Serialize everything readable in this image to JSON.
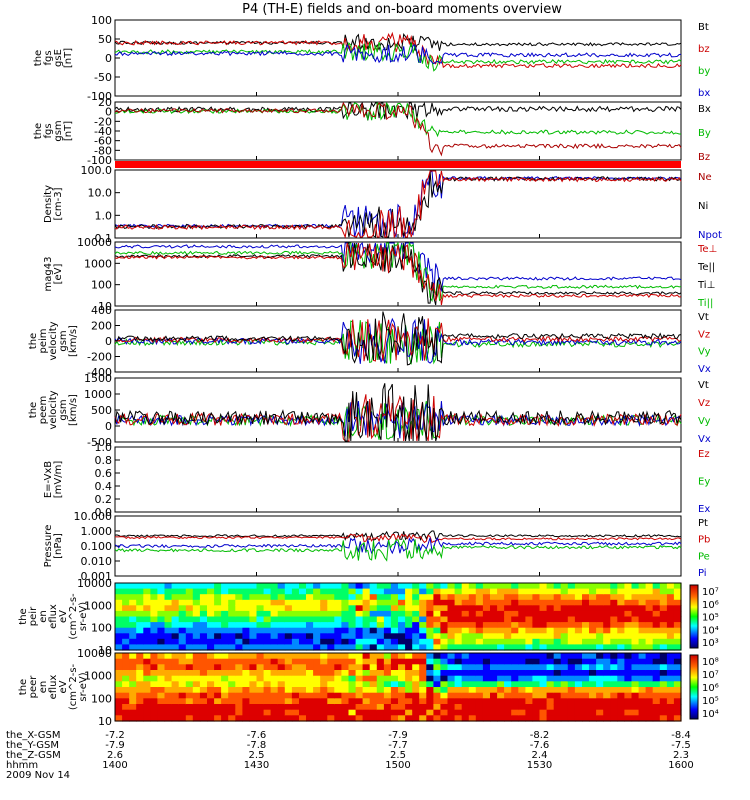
{
  "title": "P4 (TH-E) fields and on-board moments overview",
  "panels": [
    {
      "id": "fgs-gse",
      "ylabel": [
        "the",
        "fgs",
        "gsE",
        "[nT]"
      ],
      "yticks": [
        "100",
        "50",
        "0",
        "-50",
        "-100"
      ],
      "legend": [
        {
          "label": "Bt",
          "color": "#000000"
        },
        {
          "label": "bz",
          "color": "#cc0000"
        },
        {
          "label": "by",
          "color": "#00bb00"
        },
        {
          "label": "bx",
          "color": "#0000cc"
        }
      ]
    },
    {
      "id": "fgs-gsm",
      "ylabel": [
        "the",
        "fgs",
        "gsm",
        "[nT]"
      ],
      "yticks": [
        "20",
        "0",
        "-20",
        "-40",
        "-60",
        "-80",
        "-100"
      ],
      "legend": [
        {
          "label": "Bx",
          "color": "#000000"
        },
        {
          "label": "By",
          "color": "#00bb00"
        },
        {
          "label": "Bz",
          "color": "#aa0000"
        }
      ]
    },
    {
      "id": "density",
      "ylabel": [
        "Density",
        "[cm-3]"
      ],
      "yticks": [
        "100.0",
        "10.0",
        "1.0",
        "0.1"
      ],
      "legend": [
        {
          "label": "Ne",
          "color": "#aa0000"
        },
        {
          "label": "Ni",
          "color": "#000000"
        },
        {
          "label": "Npot",
          "color": "#0000cc"
        }
      ]
    },
    {
      "id": "temperature",
      "ylabel": [
        "mag43",
        "[eV]"
      ],
      "yticks": [
        "10000",
        "1000",
        "100",
        "10"
      ],
      "legend": [
        {
          "label": "Te⊥",
          "color": "#cc0000"
        },
        {
          "label": "Te||",
          "color": "#000000"
        },
        {
          "label": "Ti⊥",
          "color": "#000000"
        },
        {
          "label": "Ti||",
          "color": "#00bb00"
        }
      ]
    },
    {
      "id": "peim-velocity",
      "ylabel": [
        "the",
        "peim",
        "velocity",
        "gsm",
        "[km/s]"
      ],
      "yticks": [
        "400",
        "200",
        "0",
        "-200",
        "-400"
      ],
      "legend": [
        {
          "label": "Vt",
          "color": "#000000"
        },
        {
          "label": "Vz",
          "color": "#cc0000"
        },
        {
          "label": "Vy",
          "color": "#00bb00"
        },
        {
          "label": "Vx",
          "color": "#0000cc"
        }
      ]
    },
    {
      "id": "peem-velocity",
      "ylabel": [
        "the",
        "peem",
        "velocity",
        "gsm",
        "[km/s]"
      ],
      "yticks": [
        "1500",
        "1000",
        "500",
        "0",
        "-500"
      ],
      "legend": [
        {
          "label": "Vt",
          "color": "#000000"
        },
        {
          "label": "Vz",
          "color": "#cc0000"
        },
        {
          "label": "Vy",
          "color": "#00bb00"
        },
        {
          "label": "Vx",
          "color": "#0000cc"
        }
      ]
    },
    {
      "id": "efield",
      "ylabel": [
        "E=-VxB",
        "[mV/m]"
      ],
      "yticks": [
        "1.0",
        "0.8",
        "0.6",
        "0.4",
        "0.2",
        "0.0"
      ],
      "legend": [
        {
          "label": "Ez",
          "color": "#cc0000"
        },
        {
          "label": "Ey",
          "color": "#00bb00"
        },
        {
          "label": "Ex",
          "color": "#0000cc"
        }
      ]
    },
    {
      "id": "pressure",
      "ylabel": [
        "Pressure",
        "[nPa]"
      ],
      "yticks": [
        "10.000",
        "1.000",
        "0.100",
        "0.010",
        "0.001"
      ],
      "legend": [
        {
          "label": "Pt",
          "color": "#000000"
        },
        {
          "label": "Pb",
          "color": "#cc0000"
        },
        {
          "label": "Pe",
          "color": "#00bb00"
        },
        {
          "label": "Pi",
          "color": "#0000cc"
        }
      ]
    },
    {
      "id": "peir-eflux",
      "ylabel": [
        "the",
        "peir",
        "en",
        "eflux",
        "eV",
        "(cm^2-s-",
        "sr-eV)"
      ],
      "yticks": [
        "10000",
        "1000",
        "100",
        "10"
      ],
      "colorbar": [
        "10⁷",
        "10⁶",
        "10⁵",
        "10⁴",
        "10³"
      ]
    },
    {
      "id": "peer-eflux",
      "ylabel": [
        "the",
        "peer",
        "en",
        "eflux",
        "eV",
        "(cm^2-s-",
        "sr-eV)"
      ],
      "yticks": [
        "10000",
        "1000",
        "100",
        "10"
      ],
      "colorbar": [
        "10⁸",
        "10⁷",
        "10⁶",
        "10⁵",
        "10⁴"
      ]
    }
  ],
  "xaxis": {
    "row_labels": [
      "the_X-GSM",
      "the_Y-GSM",
      "the_Z-GSM",
      "hhmm",
      "2009 Nov 14"
    ],
    "ticks": [
      {
        "x": "-7.2",
        "y": "-7.9",
        "z": "2.6",
        "hhmm": "1400"
      },
      {
        "x": "-7.6",
        "y": "-7.8",
        "z": "2.5",
        "hhmm": "1430"
      },
      {
        "x": "-7.9",
        "y": "-7.7",
        "z": "2.5",
        "hhmm": "1500"
      },
      {
        "x": "-8.2",
        "y": "-7.6",
        "z": "2.4",
        "hhmm": "1530"
      },
      {
        "x": "-8.4",
        "y": "-7.5",
        "z": "2.3",
        "hhmm": "1600"
      }
    ]
  },
  "chart_data": {
    "type": "line",
    "title": "P4 (TH-E) fields and on-board moments overview",
    "x_range": [
      "1400",
      "1600"
    ],
    "x_ticks": [
      "1400",
      "1430",
      "1500",
      "1530",
      "1600"
    ],
    "boundary_crossing_hhmm": "1508",
    "series": [
      {
        "panel": "fgs-gse",
        "name": "Bt",
        "values_before": 40,
        "values_after": 38
      },
      {
        "panel": "fgs-gse",
        "name": "bz",
        "values_before": 40,
        "values_after": -20
      },
      {
        "panel": "fgs-gse",
        "name": "by",
        "values_before": 0,
        "values_after": -12
      },
      {
        "panel": "fgs-gse",
        "name": "bx",
        "values_before": -5,
        "values_after": 0
      },
      {
        "panel": "fgs-gsm",
        "name": "Bx",
        "values_before": 10,
        "values_after": 5
      },
      {
        "panel": "fgs-gsm",
        "name": "By",
        "values_before": 5,
        "values_after": -40
      },
      {
        "panel": "fgs-gsm",
        "name": "Bz",
        "values_before": 10,
        "values_after": -75
      },
      {
        "panel": "density",
        "name": "Ne",
        "values_before": 0.3,
        "values_after": 25
      },
      {
        "panel": "density",
        "name": "Ni",
        "values_before": 0.3,
        "values_after": 25
      },
      {
        "panel": "density",
        "name": "Npot",
        "values_before": 0.3,
        "values_after": 28
      },
      {
        "panel": "temperature",
        "name": "Te⊥",
        "values_before": 2000,
        "values_after": 45
      },
      {
        "panel": "temperature",
        "name": "Ti⊥",
        "values_before": 5000,
        "values_after": 150
      },
      {
        "panel": "temperature",
        "name": "Ti||",
        "values_before": 2500,
        "values_after": 70
      },
      {
        "panel": "pressure",
        "name": "Pt",
        "values_before": 0.9,
        "values_after": 1.0
      },
      {
        "panel": "pressure",
        "name": "Pb",
        "values_before": 0.7,
        "values_after": 0.6
      },
      {
        "panel": "pressure",
        "name": "Pe",
        "values_before": 0.12,
        "values_after": 0.15
      },
      {
        "panel": "pressure",
        "name": "Pi",
        "values_before": 0.2,
        "values_after": 0.3
      }
    ]
  }
}
